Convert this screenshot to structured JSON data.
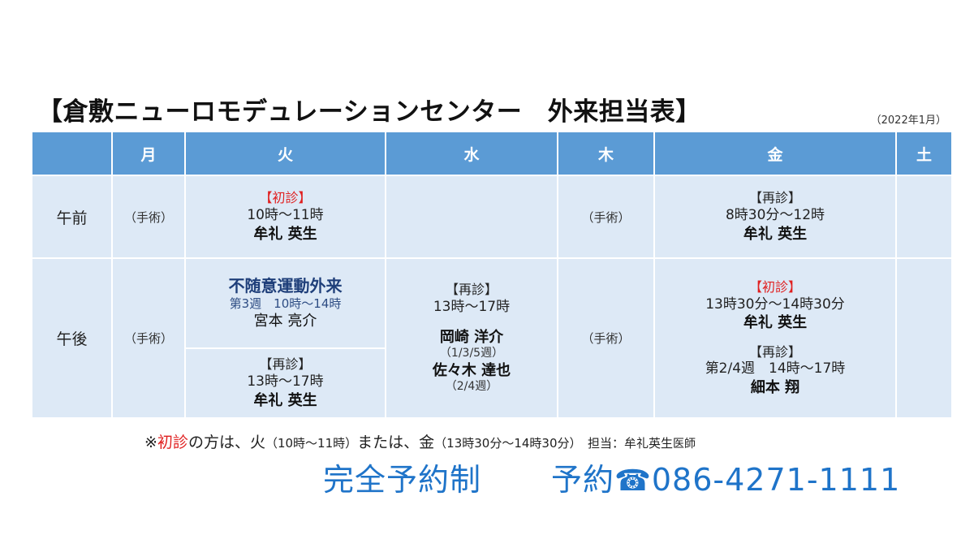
{
  "title": "【倉敷ニューロモデュレーションセンター　外来担当表】",
  "date_note": "（2022年1月）",
  "headers": [
    "",
    "月",
    "火",
    "水",
    "木",
    "金",
    "土"
  ],
  "rows": {
    "am": {
      "period": "午前",
      "mon": "（手術）",
      "tue": {
        "label": "【初診】",
        "time": "10時～11時",
        "doctor": "牟礼 英生"
      },
      "thu": "（手術）",
      "fri": {
        "label": "【再診】",
        "time": "8時30分～12時",
        "doctor": "牟礼 英生"
      }
    },
    "pm": {
      "period": "午後",
      "mon": "（手術）",
      "tue_top": {
        "title": "不随意運動外来",
        "sub": "第3週　10時～14時",
        "doctor": "宮本 亮介"
      },
      "tue_bottom": {
        "label": "【再診】",
        "time": "13時～17時",
        "doctor": "牟礼 英生"
      },
      "wed": {
        "label": "【再診】",
        "time": "13時～17時",
        "doctor1": "岡崎 洋介",
        "weeks1": "（1/3/5週）",
        "doctor2": "佐々木 達也",
        "weeks2": "（2/4週）"
      },
      "thu": "（手術）",
      "fri": {
        "label1": "【初診】",
        "time1": "13時30分～14時30分",
        "doctor1": "牟礼 英生",
        "label2": "【再診】",
        "time2": "第2/4週　14時～17時",
        "doctor2": "細本 翔"
      }
    }
  },
  "footnote": {
    "prefix": "※",
    "first_visit": "初診",
    "part1": "の方は、火",
    "time_tue": "（10時～11時）",
    "part2": "または、金",
    "time_fri": "（13時30分～14時30分）",
    "part3": "　担当：牟礼英生",
    "suffix": "医師"
  },
  "booking": {
    "system": "完全予約制",
    "reserve_label": "予約",
    "phone_icon": "phone-icon",
    "phone": "086-4271-1111"
  },
  "colors": {
    "header_bg": "#5b9bd5",
    "cell_bg": "#dde9f6",
    "accent_red": "#e02020",
    "booking_blue": "#1f74c9",
    "subtitle_navy": "#1f3f7a"
  }
}
